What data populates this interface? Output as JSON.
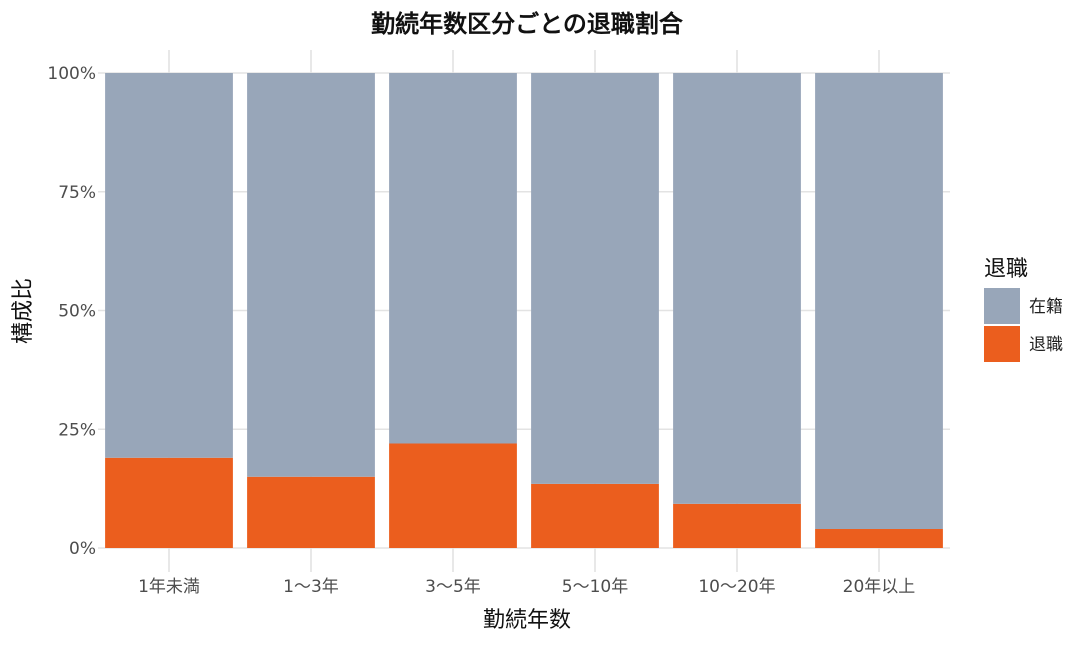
{
  "chart_data": {
    "type": "bar",
    "stacked": true,
    "normalized": true,
    "title": "勤続年数区分ごとの退職割合",
    "xlabel": "勤続年数",
    "ylabel": "構成比",
    "categories": [
      "1年未満",
      "1〜3年",
      "3〜5年",
      "5〜10年",
      "10〜20年",
      "20年以上"
    ],
    "series": [
      {
        "name": "退職",
        "values": [
          0.19,
          0.15,
          0.22,
          0.135,
          0.093,
          0.04
        ],
        "color": "#eb5e1e"
      },
      {
        "name": "在籍",
        "values": [
          0.81,
          0.85,
          0.78,
          0.865,
          0.907,
          0.96
        ],
        "color": "#98a6b9"
      }
    ],
    "ylim": [
      0,
      1
    ],
    "yticks": [
      0,
      0.25,
      0.5,
      0.75,
      1
    ],
    "ytick_labels": [
      "0%",
      "25%",
      "50%",
      "75%",
      "100%"
    ],
    "grid": true,
    "legend": {
      "title": "退職",
      "position": "right",
      "entries": [
        {
          "label": "在籍",
          "color": "#98a6b9"
        },
        {
          "label": "退職",
          "color": "#eb5e1e"
        }
      ]
    }
  }
}
